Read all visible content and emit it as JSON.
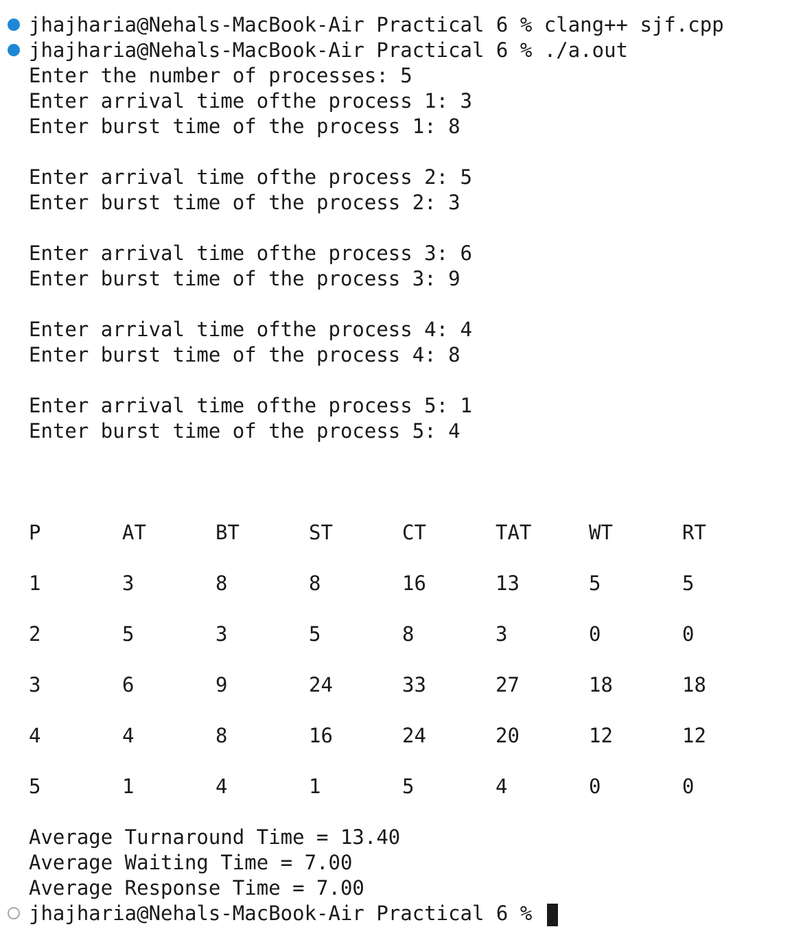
{
  "terminal": {
    "commands": [
      {
        "status": "success",
        "prompt": "jhajharia@Nehals-MacBook-Air Practical 6 %",
        "command": "clang++ sjf.cpp"
      },
      {
        "status": "success",
        "prompt": "jhajharia@Nehals-MacBook-Air Practical 6 %",
        "command": "./a.out"
      }
    ],
    "input_lines": [
      "Enter the number of processes: 5",
      "Enter arrival time ofthe process 1: 3",
      "Enter burst time of the process 1: 8",
      "",
      "Enter arrival time ofthe process 2: 5",
      "Enter burst time of the process 2: 3",
      "",
      "Enter arrival time ofthe process 3: 6",
      "Enter burst time of the process 3: 9",
      "",
      "Enter arrival time ofthe process 4: 4",
      "Enter burst time of the process 4: 8",
      "",
      "Enter arrival time ofthe process 5: 1",
      "Enter burst time of the process 5: 4"
    ],
    "table": {
      "headers": [
        "P",
        "AT",
        "BT",
        "ST",
        "CT",
        "TAT",
        "WT",
        "RT"
      ],
      "rows": [
        [
          "1",
          "3",
          "8",
          "8",
          "16",
          "13",
          "5",
          "5"
        ],
        [
          "2",
          "5",
          "3",
          "5",
          "8",
          "3",
          "0",
          "0"
        ],
        [
          "3",
          "6",
          "9",
          "24",
          "33",
          "27",
          "18",
          "18"
        ],
        [
          "4",
          "4",
          "8",
          "16",
          "24",
          "20",
          "12",
          "12"
        ],
        [
          "5",
          "1",
          "4",
          "1",
          "5",
          "4",
          "0",
          "0"
        ]
      ]
    },
    "summary": [
      "Average Turnaround Time = 13.40",
      "Average Waiting Time = 7.00",
      "Average Response Time = 7.00"
    ],
    "current_prompt": {
      "status": "pending",
      "prompt": "jhajharia@Nehals-MacBook-Air Practical 6 %"
    }
  }
}
